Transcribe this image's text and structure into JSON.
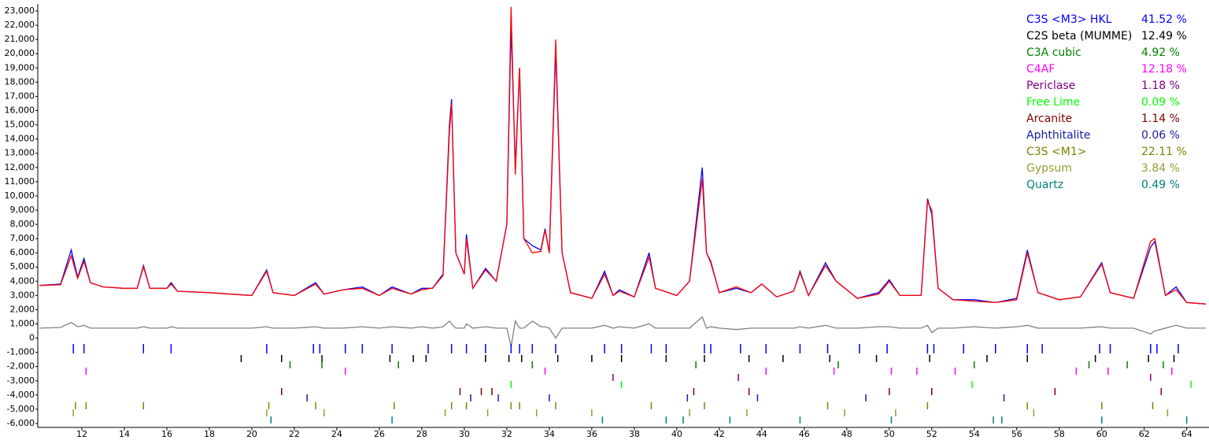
{
  "chart_data": {
    "type": "line",
    "x": [
      10,
      11,
      11.5,
      11.8,
      12.1,
      12.4,
      13,
      14,
      14.6,
      14.9,
      15.2,
      16,
      16.2,
      16.5,
      18,
      20,
      20.7,
      21,
      22,
      23,
      23.4,
      24.3,
      25.2,
      26,
      26.6,
      27.5,
      28,
      28.5,
      29,
      29.3,
      29.4,
      29.6,
      30,
      30.1,
      30.4,
      31,
      31.5,
      32,
      32.2,
      32.4,
      32.6,
      32.8,
      33.2,
      33.6,
      33.8,
      34,
      34.3,
      34.6,
      35,
      36,
      36.6,
      37,
      37.3,
      38,
      38.7,
      39,
      40,
      40.6,
      41.2,
      41.4,
      41.6,
      42,
      42.8,
      43.5,
      44,
      44.7,
      45.5,
      45.8,
      46.2,
      47,
      47.5,
      48.5,
      49.5,
      50,
      50.5,
      51.5,
      51.8,
      52,
      52.3,
      53,
      54,
      55,
      56,
      56.5,
      57,
      58,
      59,
      60,
      60.4,
      61.5,
      62.3,
      62.5,
      63,
      63.5,
      64,
      64.9
    ],
    "series": [
      {
        "color": "#0000ff",
        "values": [
          3700,
          3800,
          6200,
          4300,
          5600,
          3900,
          3600,
          3500,
          3500,
          5100,
          3500,
          3500,
          3900,
          3300,
          3200,
          3000,
          4800,
          3200,
          3000,
          3900,
          3100,
          3400,
          3600,
          3000,
          3600,
          3100,
          3500,
          3500,
          4500,
          15000,
          16800,
          6000,
          4500,
          7300,
          3500,
          4900,
          4000,
          8000,
          22000,
          12000,
          19000,
          7000,
          6500,
          6200,
          7700,
          6000,
          20300,
          6000,
          3200,
          2800,
          4700,
          3000,
          3400,
          2900,
          6000,
          3500,
          3000,
          4000,
          12000,
          6000,
          5400,
          3200,
          3500,
          3200,
          3800,
          2900,
          3300,
          4700,
          3000,
          5300,
          4000,
          2800,
          3200,
          4100,
          3000,
          3000,
          9800,
          8700,
          3500,
          2700,
          2700,
          2500,
          2800,
          6200,
          3200,
          2700,
          2900,
          5300,
          3200,
          2800,
          6400,
          6800,
          3000,
          3600,
          2500,
          2400
        ]
      },
      {
        "color": "#ff0000",
        "values": [
          3700,
          3750,
          5800,
          4200,
          5400,
          3900,
          3600,
          3500,
          3500,
          5000,
          3500,
          3500,
          3800,
          3300,
          3200,
          3000,
          4700,
          3200,
          3000,
          3800,
          3100,
          3400,
          3500,
          3000,
          3500,
          3100,
          3400,
          3500,
          4400,
          14500,
          16500,
          6000,
          4500,
          7000,
          3500,
          4800,
          4000,
          8000,
          23300,
          11500,
          19000,
          7000,
          6000,
          6100,
          7600,
          6000,
          21000,
          6000,
          3200,
          2800,
          4500,
          3000,
          3300,
          2900,
          5700,
          3500,
          3000,
          4000,
          11200,
          6000,
          5300,
          3200,
          3600,
          3200,
          3800,
          2900,
          3300,
          4600,
          3000,
          5100,
          4000,
          2800,
          3100,
          4000,
          3000,
          3000,
          9600,
          9000,
          3500,
          2700,
          2600,
          2500,
          2700,
          6000,
          3200,
          2700,
          2900,
          5200,
          3200,
          2800,
          6800,
          7000,
          3000,
          3400,
          2500,
          2400
        ]
      },
      {
        "color": "#808080",
        "values": [
          700,
          750,
          1100,
          800,
          900,
          700,
          700,
          700,
          700,
          800,
          700,
          700,
          800,
          700,
          700,
          700,
          800,
          700,
          700,
          800,
          700,
          700,
          800,
          700,
          800,
          700,
          800,
          700,
          800,
          1200,
          1000,
          700,
          700,
          1000,
          700,
          800,
          700,
          700,
          -600,
          1200,
          700,
          700,
          1200,
          800,
          800,
          700,
          0,
          700,
          700,
          700,
          900,
          700,
          800,
          700,
          1000,
          700,
          700,
          700,
          1500,
          700,
          800,
          700,
          600,
          700,
          700,
          700,
          700,
          800,
          700,
          900,
          700,
          700,
          800,
          800,
          700,
          700,
          900,
          400,
          700,
          700,
          800,
          700,
          800,
          900,
          700,
          700,
          700,
          800,
          700,
          700,
          300,
          500,
          700,
          900,
          700,
          700
        ]
      }
    ],
    "phases": [
      {
        "name": "C3S <M3> HKL",
        "color": "#0000ff",
        "value": 41.52,
        "value_label": "41.52 %",
        "reflections": [
          11.6,
          12.1,
          14.9,
          16.2,
          20.7,
          22.9,
          23.2,
          24.4,
          25.2,
          26.6,
          28.3,
          29.4,
          30.1,
          31.0,
          32.2,
          32.6,
          33.2,
          34.3,
          36.6,
          37.4,
          38.8,
          39.5,
          41.3,
          41.6,
          43.0,
          44.2,
          45.8,
          47.1,
          48.6,
          49.9,
          51.8,
          52.1,
          53.5,
          55.0,
          56.5,
          57.2,
          59.9,
          60.4,
          62.3,
          62.6,
          63.6
        ]
      },
      {
        "name": "C2S beta (MUMME)",
        "color": "#000000",
        "value": 12.49,
        "value_label": "12.49 %",
        "reflections": [
          19.5,
          21.4,
          23.3,
          26.5,
          27.6,
          28.2,
          31.0,
          32.1,
          32.7,
          34.4,
          36.0,
          37.4,
          39.5,
          41.3,
          43.4,
          45.0,
          47.2,
          49.4,
          51.9,
          54.6,
          56.5,
          59.7,
          62.2,
          63.4
        ]
      },
      {
        "name": "C3A cubic",
        "color": "#008000",
        "value": 4.92,
        "value_label": "4.92 %",
        "reflections": [
          21.8,
          23.3,
          26.9,
          33.2,
          40.9,
          47.6,
          54.0,
          59.4,
          61.2,
          62.9
        ]
      },
      {
        "name": "C4AF",
        "color": "#ff00ff",
        "value": 12.18,
        "value_label": "12.18 %",
        "reflections": [
          12.2,
          24.4,
          33.8,
          44.2,
          47.4,
          50.1,
          51.3,
          53.1,
          58.8,
          60.3,
          63.3
        ]
      },
      {
        "name": "Periclase",
        "color": "#800080",
        "value": 1.18,
        "value_label": "1.18 %",
        "reflections": [
          37.0,
          42.9,
          62.3
        ]
      },
      {
        "name": "Free Lime",
        "color": "#00ff00",
        "value": 0.09,
        "value_label": "0.09 %",
        "reflections": [
          32.2,
          37.4,
          53.9,
          64.2
        ]
      },
      {
        "name": "Arcanite",
        "color": "#800000",
        "value": 1.14,
        "value_label": "1.14 %",
        "reflections": [
          21.4,
          29.8,
          30.8,
          31.3,
          40.8,
          43.4,
          50.0,
          52.0,
          57.8,
          62.8
        ]
      },
      {
        "name": "Aphthitalite",
        "color": "#1a1aa0",
        "value": 0.06,
        "value_label": "0.06 %",
        "reflections": [
          22.6,
          30.3,
          31.6,
          34.0,
          40.5,
          43.8,
          48.9,
          55.4
        ]
      },
      {
        "name": "C3S <M1>",
        "color": "#808000",
        "value": 22.11,
        "value_label": "22.11 %",
        "reflections": [
          11.7,
          12.2,
          14.9,
          20.8,
          23.0,
          26.7,
          29.4,
          30.1,
          32.2,
          32.6,
          34.3,
          38.8,
          41.3,
          47.1,
          51.8,
          56.5,
          60.0,
          62.4
        ]
      },
      {
        "name": "Gypsum",
        "color": "#999933",
        "value": 3.84,
        "value_label": "3.84 %",
        "reflections": [
          11.6,
          20.7,
          23.4,
          29.1,
          31.1,
          33.4,
          36.0,
          40.6,
          43.3,
          47.9,
          50.3,
          56.8,
          63.1
        ]
      },
      {
        "name": "Quartz",
        "color": "#008080",
        "value": 0.49,
        "value_label": "0.49 %",
        "reflections": [
          20.9,
          26.6,
          36.5,
          39.5,
          40.3,
          42.5,
          45.8,
          50.1,
          54.9,
          55.3,
          60.0,
          64.0
        ]
      }
    ],
    "xlim": [
      10,
      64.9
    ],
    "xticks": [
      12,
      14,
      16,
      18,
      20,
      22,
      24,
      26,
      28,
      30,
      32,
      34,
      36,
      38,
      40,
      42,
      44,
      46,
      48,
      50,
      52,
      54,
      56,
      58,
      60,
      62,
      64
    ],
    "ylim": [
      -6300,
      23500
    ],
    "yticks": [
      {
        "value": -6000,
        "label": "-6,000"
      },
      {
        "value": -5000,
        "label": "-5,000"
      },
      {
        "value": -4000,
        "label": "-4,000"
      },
      {
        "value": -3000,
        "label": "-3,000"
      },
      {
        "value": -2000,
        "label": "-2,000"
      },
      {
        "value": -1000,
        "label": "-1,000"
      },
      0,
      {
        "value": 1000,
        "label": "1,000"
      },
      {
        "value": 2000,
        "label": "2,000"
      },
      {
        "value": 3000,
        "label": "3,000"
      },
      {
        "value": 4000,
        "label": "4,000"
      },
      {
        "value": 5000,
        "label": "5,000"
      },
      {
        "value": 6000,
        "label": "6,000"
      },
      {
        "value": 7000,
        "label": "7,000"
      },
      {
        "value": 8000,
        "label": "8,000"
      },
      {
        "value": 9000,
        "label": "9,000"
      },
      {
        "value": 10000,
        "label": "10,000"
      },
      {
        "value": 11000,
        "label": "11,000"
      },
      {
        "value": 12000,
        "label": "12,000"
      },
      {
        "value": 13000,
        "label": "13,000"
      },
      {
        "value": 14000,
        "label": "14,000"
      },
      {
        "value": 15000,
        "label": "15,000"
      },
      {
        "value": 16000,
        "label": "16,000"
      },
      {
        "value": 17000,
        "label": "17,000"
      },
      {
        "value": 18000,
        "label": "18,000"
      },
      {
        "value": 19000,
        "label": "19,000"
      },
      {
        "value": 20000,
        "label": "20,000"
      },
      {
        "value": 21000,
        "label": "21,000"
      },
      {
        "value": 22000,
        "label": "22,000"
      },
      {
        "value": 23000,
        "label": "23,000"
      }
    ]
  }
}
